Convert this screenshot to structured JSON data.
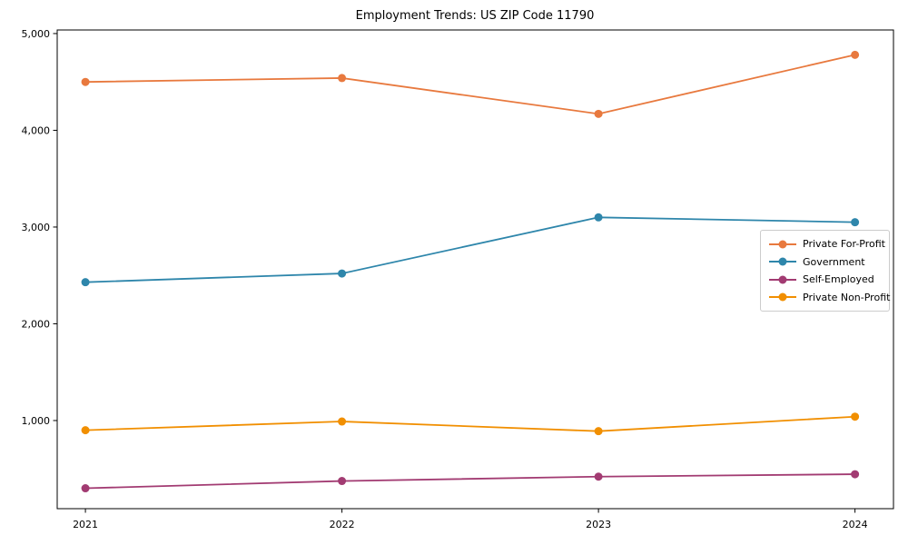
{
  "chart_data": {
    "type": "line",
    "title": "Employment Trends: US ZIP Code 11790",
    "xlabel": "",
    "ylabel": "",
    "x": [
      2021,
      2022,
      2023,
      2024
    ],
    "xtick_labels": [
      "2021",
      "2022",
      "2023",
      "2024"
    ],
    "ytick_values": [
      1000,
      2000,
      3000,
      4000,
      5000
    ],
    "ytick_labels": [
      "1,000",
      "2,000",
      "3,000",
      "4,000",
      "5,000"
    ],
    "xlim": [
      2020.89,
      2024.15
    ],
    "ylim": [
      89,
      5037
    ],
    "grid": false,
    "legend_position": "center right",
    "axis_color": "#000000",
    "background_color": "#ffffff",
    "legend_border_color": "#cccccc",
    "series": [
      {
        "name": "Private For-Profit",
        "color": "#E8793E",
        "values": [
          4500,
          4540,
          4170,
          4780
        ]
      },
      {
        "name": "Government",
        "color": "#2E86AB",
        "values": [
          2430,
          2520,
          3100,
          3050
        ]
      },
      {
        "name": "Self-Employed",
        "color": "#A23B72",
        "values": [
          300,
          375,
          420,
          445
        ]
      },
      {
        "name": "Private Non-Profit",
        "color": "#F18F01",
        "values": [
          900,
          990,
          890,
          1040
        ]
      }
    ]
  }
}
